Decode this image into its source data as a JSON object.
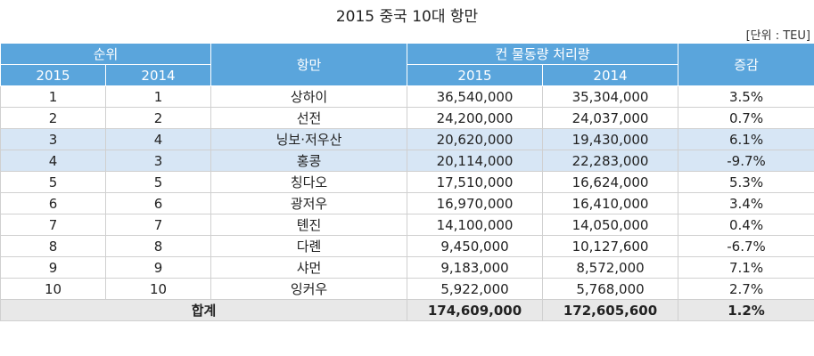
{
  "title": "2015 중국 10대 항만",
  "unit": "[단위 : TEU]",
  "header": {
    "rank": "순위",
    "rank_2015": "2015",
    "rank_2014": "2014",
    "port": "항만",
    "volume": "컨 물동량 처리량",
    "volume_2015": "2015",
    "volume_2014": "2014",
    "change": "증감"
  },
  "table": {
    "rows": [
      [
        "1",
        "1",
        "상하이",
        "36,540,000",
        "35,304,000",
        "3.5%"
      ],
      [
        "2",
        "2",
        "선전",
        "24,200,000",
        "24,037,000",
        "0.7%"
      ],
      [
        "3",
        "4",
        "닝보·저우산",
        "20,620,000",
        "19,430,000",
        "6.1%"
      ],
      [
        "4",
        "3",
        "홍콩",
        "20,114,000",
        "22,283,000",
        "-9.7%"
      ],
      [
        "5",
        "5",
        "칭다오",
        "17,510,000",
        "16,624,000",
        "5.3%"
      ],
      [
        "6",
        "6",
        "광저우",
        "16,970,000",
        "16,410,000",
        "3.4%"
      ],
      [
        "7",
        "7",
        "톈진",
        "14,100,000",
        "14,050,000",
        "0.4%"
      ],
      [
        "8",
        "8",
        "다롄",
        "9,450,000",
        "10,127,600",
        "-6.7%"
      ],
      [
        "9",
        "9",
        "샤먼",
        "9,183,000",
        "8,572,000",
        "7.1%"
      ],
      [
        "10",
        "10",
        "잉커우",
        "5,922,000",
        "5,768,000",
        "2.7%"
      ]
    ]
  },
  "total": {
    "label": "합계",
    "volume_2015": "174,609,000",
    "volume_2014": "172,605,600",
    "change": "1.2%"
  }
}
